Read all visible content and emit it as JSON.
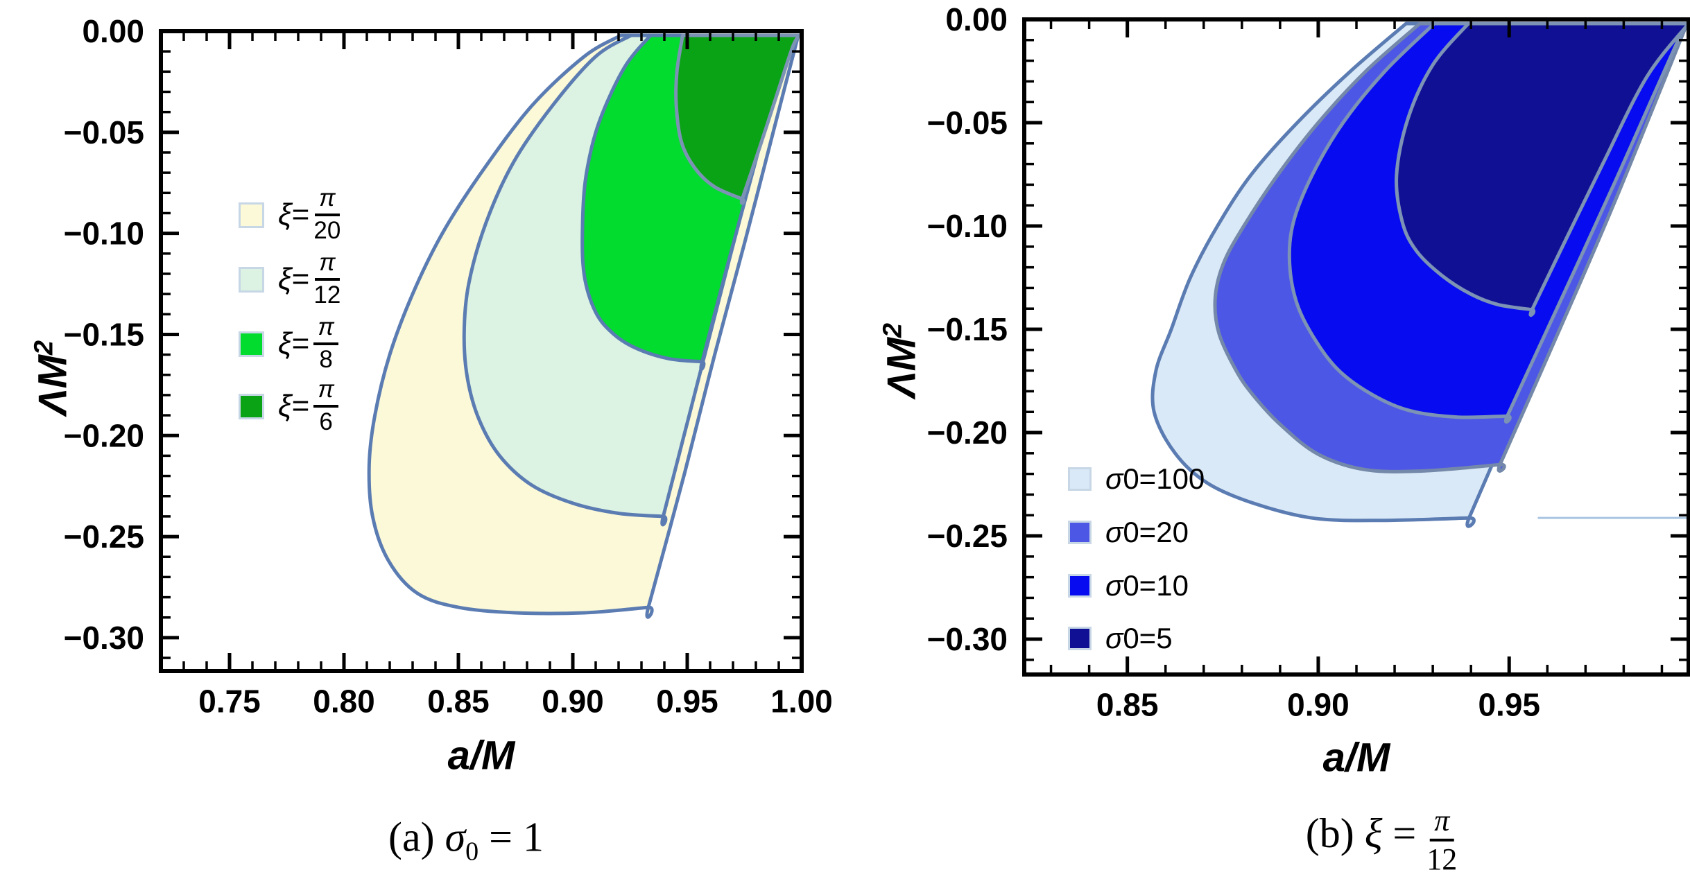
{
  "figure": {
    "background": "#ffffff",
    "captions": {
      "a": {
        "prefix": "(a) ",
        "symbol": "σ",
        "subscript": "0",
        "suffix": " = 1"
      },
      "b": {
        "prefix": "(b) ",
        "symbol": "ξ",
        "equals": " = ",
        "frac_num": "π",
        "frac_den": "12"
      }
    }
  },
  "chart_data": [
    {
      "id": "a",
      "type": "area",
      "title": "(a) σ0 = 1",
      "xlabel": "a/M",
      "ylabel": "ΛM²",
      "ylabel_parts": {
        "base": "ΛM",
        "sup": "2"
      },
      "x_range": [
        0.72,
        1.0
      ],
      "y_range": [
        -0.3165,
        0
      ],
      "minor_step": 0.01,
      "grid": false,
      "frame_color": "#000000",
      "legend_position": "upper-left-inside",
      "x_ticks": [
        {
          "v": 0.75,
          "label": "0.75"
        },
        {
          "v": 0.8,
          "label": "0.80"
        },
        {
          "v": 0.85,
          "label": "0.85"
        },
        {
          "v": 0.9,
          "label": "0.90"
        },
        {
          "v": 0.95,
          "label": "0.95"
        },
        {
          "v": 1.0,
          "label": "1.00"
        }
      ],
      "y_ticks": [
        {
          "v": 0,
          "label": "0.00"
        },
        {
          "v": -0.05,
          "label": "−0.05"
        },
        {
          "v": -0.1,
          "label": "−0.10"
        },
        {
          "v": -0.15,
          "label": "−0.15"
        },
        {
          "v": -0.2,
          "label": "−0.20"
        },
        {
          "v": -0.25,
          "label": "−0.25"
        },
        {
          "v": -0.3,
          "label": "−0.30"
        }
      ],
      "series": [
        {
          "name": "ξ=π/20",
          "fill": "#FBF9D8",
          "stroke": "#5b7cb2",
          "legend": {
            "symbol": "ξ",
            "frac_num": "π",
            "frac_den": "20"
          },
          "points": [
            [
              0.921,
              0
            ],
            [
              0.905,
              -0.0125
            ],
            [
              0.882,
              -0.037
            ],
            [
              0.86,
              -0.07
            ],
            [
              0.843,
              -0.1
            ],
            [
              0.83,
              -0.13
            ],
            [
              0.82,
              -0.16
            ],
            [
              0.8135,
              -0.19
            ],
            [
              0.811,
              -0.215
            ],
            [
              0.8125,
              -0.24
            ],
            [
              0.8195,
              -0.262
            ],
            [
              0.832,
              -0.278
            ],
            [
              0.85,
              -0.285
            ],
            [
              0.875,
              -0.2877
            ],
            [
              0.905,
              -0.2877
            ],
            [
              0.933,
              -0.285
            ],
            [
              0.933,
              -0.285
            ],
            [
              0.949,
              -0.218
            ],
            [
              0.962,
              -0.16
            ],
            [
              0.975,
              -0.105
            ],
            [
              0.988,
              -0.048
            ],
            [
              0.9985,
              0
            ]
          ]
        },
        {
          "name": "ξ=π/12",
          "fill": "#DCF2E2",
          "stroke": "#5b7cb2",
          "legend": {
            "symbol": "ξ",
            "frac_num": "π",
            "frac_den": "12"
          },
          "points": [
            [
              0.9255,
              0
            ],
            [
              0.91,
              -0.0125
            ],
            [
              0.891,
              -0.037
            ],
            [
              0.874,
              -0.065
            ],
            [
              0.862,
              -0.095
            ],
            [
              0.8545,
              -0.125
            ],
            [
              0.8525,
              -0.15
            ],
            [
              0.854,
              -0.172
            ],
            [
              0.859,
              -0.192
            ],
            [
              0.868,
              -0.21
            ],
            [
              0.882,
              -0.2245
            ],
            [
              0.9,
              -0.2335
            ],
            [
              0.92,
              -0.2385
            ],
            [
              0.9395,
              -0.24
            ],
            [
              0.9395,
              -0.24
            ],
            [
              0.952,
              -0.185
            ],
            [
              0.9645,
              -0.13
            ],
            [
              0.977,
              -0.0755
            ],
            [
              0.989,
              -0.026
            ],
            [
              0.998,
              0
            ]
          ]
        },
        {
          "name": "ξ=π/8",
          "fill": "#01DC2F",
          "stroke": "#5b7cb2",
          "legend": {
            "symbol": "ξ",
            "frac_num": "π",
            "frac_den": "8"
          },
          "points": [
            [
              0.934,
              0
            ],
            [
              0.9225,
              -0.018
            ],
            [
              0.9115,
              -0.045
            ],
            [
              0.906,
              -0.07
            ],
            [
              0.9043,
              -0.094
            ],
            [
              0.9049,
              -0.12
            ],
            [
              0.91,
              -0.139
            ],
            [
              0.918,
              -0.15
            ],
            [
              0.928,
              -0.157
            ],
            [
              0.942,
              -0.162
            ],
            [
              0.9565,
              -0.1635
            ],
            [
              0.9565,
              -0.1635
            ],
            [
              0.968,
              -0.114
            ],
            [
              0.979,
              -0.068
            ],
            [
              0.989,
              -0.027
            ],
            [
              0.9983,
              0
            ]
          ]
        },
        {
          "name": "ξ=π/6",
          "fill": "#0AA315",
          "stroke": "#7d93b5",
          "legend": {
            "symbol": "ξ",
            "frac_num": "π",
            "frac_den": "6"
          },
          "points": [
            [
              0.948,
              0
            ],
            [
              0.9455,
              -0.02
            ],
            [
              0.9452,
              -0.037
            ],
            [
              0.9475,
              -0.055
            ],
            [
              0.9535,
              -0.068
            ],
            [
              0.962,
              -0.077
            ],
            [
              0.974,
              -0.083
            ],
            [
              0.974,
              -0.083
            ],
            [
              0.9815,
              -0.058
            ],
            [
              0.989,
              -0.032
            ],
            [
              0.996,
              -0.008
            ],
            [
              0.999,
              0
            ]
          ]
        }
      ]
    },
    {
      "id": "b",
      "type": "area",
      "title": "(b) ξ = π/12",
      "xlabel": "a/M",
      "ylabel": "ΛM²",
      "ylabel_parts": {
        "base": "ΛM",
        "sup": "2"
      },
      "x_range": [
        0.823,
        0.997
      ],
      "y_range": [
        -0.3171,
        0
      ],
      "minor_step": 0.01,
      "grid": false,
      "frame_color": "#000000",
      "legend_position": "lower-left-inside",
      "x_ticks": [
        {
          "v": 0.85,
          "label": "0.85"
        },
        {
          "v": 0.9,
          "label": "0.90"
        },
        {
          "v": 0.95,
          "label": "0.95"
        }
      ],
      "y_ticks": [
        {
          "v": 0,
          "label": "0.00"
        },
        {
          "v": -0.05,
          "label": "−0.05"
        },
        {
          "v": -0.1,
          "label": "−0.10"
        },
        {
          "v": -0.15,
          "label": "−0.15"
        },
        {
          "v": -0.2,
          "label": "−0.20"
        },
        {
          "v": -0.25,
          "label": "−0.25"
        },
        {
          "v": -0.3,
          "label": "−0.30"
        }
      ],
      "sliver": {
        "y": -0.2413,
        "x_from": 0.9575,
        "x_to": 0.9965,
        "color": "#a9c5e1",
        "width": 3
      },
      "series": [
        {
          "name": "σ0=100",
          "fill": "#DAE9F7",
          "stroke": "#5b7cb2",
          "legend": {
            "symbol": "σ0",
            "value": "100"
          },
          "points": [
            [
              0.923,
              0
            ],
            [
              0.9085,
              -0.025
            ],
            [
              0.8945,
              -0.05
            ],
            [
              0.8825,
              -0.075
            ],
            [
              0.8736,
              -0.1
            ],
            [
              0.8665,
              -0.125
            ],
            [
              0.8615,
              -0.15
            ],
            [
              0.8575,
              -0.17
            ],
            [
              0.857,
              -0.19
            ],
            [
              0.8625,
              -0.21
            ],
            [
              0.871,
              -0.2245
            ],
            [
              0.8835,
              -0.2345
            ],
            [
              0.899,
              -0.2415
            ],
            [
              0.917,
              -0.2425
            ],
            [
              0.9395,
              -0.2413
            ],
            [
              0.9395,
              -0.2413
            ],
            [
              0.9525,
              -0.186
            ],
            [
              0.9655,
              -0.131
            ],
            [
              0.978,
              -0.077
            ],
            [
              0.99,
              -0.025
            ],
            [
              0.9969,
              0
            ]
          ]
        },
        {
          "name": "σ0=20",
          "fill": "#4D57E6",
          "stroke": "#7488a9",
          "legend": {
            "symbol": "σ0",
            "value": "20"
          },
          "points": [
            [
              0.9266,
              0
            ],
            [
              0.9125,
              -0.025
            ],
            [
              0.9,
              -0.05
            ],
            [
              0.8895,
              -0.075
            ],
            [
              0.8805,
              -0.1
            ],
            [
              0.8752,
              -0.118
            ],
            [
              0.873,
              -0.135
            ],
            [
              0.874,
              -0.152
            ],
            [
              0.8785,
              -0.17
            ],
            [
              0.883,
              -0.182
            ],
            [
              0.89,
              -0.196
            ],
            [
              0.9,
              -0.2105
            ],
            [
              0.9125,
              -0.218
            ],
            [
              0.928,
              -0.2185
            ],
            [
              0.9476,
              -0.2155
            ],
            [
              0.9476,
              -0.2155
            ],
            [
              0.958,
              -0.172
            ],
            [
              0.968,
              -0.13
            ],
            [
              0.9775,
              -0.089
            ],
            [
              0.987,
              -0.046
            ],
            [
              0.9966,
              0
            ]
          ]
        },
        {
          "name": "σ0=10",
          "fill": "#060CEF",
          "stroke": "#7d93b5",
          "legend": {
            "symbol": "σ0",
            "value": "10"
          },
          "points": [
            [
              0.9304,
              0
            ],
            [
              0.9175,
              -0.025
            ],
            [
              0.9065,
              -0.05
            ],
            [
              0.8985,
              -0.075
            ],
            [
              0.8935,
              -0.098
            ],
            [
              0.8925,
              -0.118
            ],
            [
              0.8945,
              -0.138
            ],
            [
              0.8995,
              -0.156
            ],
            [
              0.9057,
              -0.1705
            ],
            [
              0.9145,
              -0.182
            ],
            [
              0.9242,
              -0.1895
            ],
            [
              0.9365,
              -0.1925
            ],
            [
              0.9495,
              -0.192
            ],
            [
              0.9495,
              -0.192
            ],
            [
              0.959,
              -0.154
            ],
            [
              0.9685,
              -0.116
            ],
            [
              0.978,
              -0.0775
            ],
            [
              0.9875,
              -0.038
            ],
            [
              0.9962,
              0
            ]
          ]
        },
        {
          "name": "σ0=5",
          "fill": "#101095",
          "stroke": "#7d93b5",
          "legend": {
            "symbol": "σ0",
            "value": "5"
          },
          "points": [
            [
              0.9393,
              0
            ],
            [
              0.93,
              -0.022
            ],
            [
              0.9235,
              -0.048
            ],
            [
              0.9205,
              -0.0755
            ],
            [
              0.922,
              -0.098
            ],
            [
              0.9257,
              -0.112
            ],
            [
              0.9324,
              -0.124
            ],
            [
              0.94,
              -0.133
            ],
            [
              0.947,
              -0.138
            ],
            [
              0.956,
              -0.1405
            ],
            [
              0.956,
              -0.1405
            ],
            [
              0.965,
              -0.106
            ],
            [
              0.9745,
              -0.07
            ],
            [
              0.986,
              -0.028
            ],
            [
              0.997,
              0
            ]
          ]
        }
      ]
    }
  ]
}
